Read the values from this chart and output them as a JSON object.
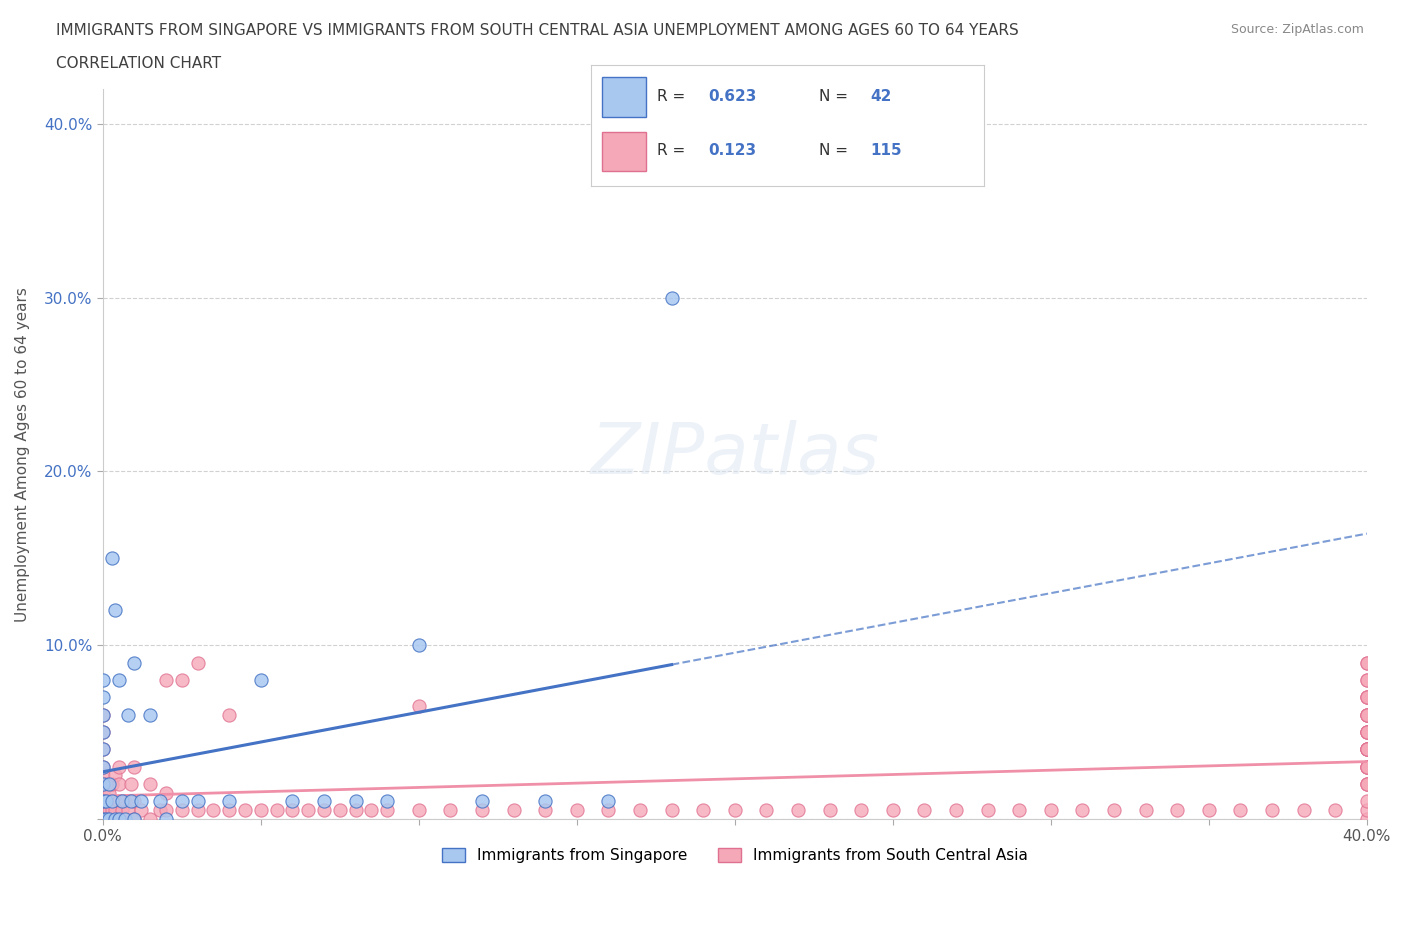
{
  "title_line1": "IMMIGRANTS FROM SINGAPORE VS IMMIGRANTS FROM SOUTH CENTRAL ASIA UNEMPLOYMENT AMONG AGES 60 TO 64 YEARS",
  "title_line2": "CORRELATION CHART",
  "source": "Source: ZipAtlas.com",
  "ylabel": "Unemployment Among Ages 60 to 64 years",
  "xlim": [
    0.0,
    0.4
  ],
  "ylim": [
    0.0,
    0.42
  ],
  "legend_r1": "0.623",
  "legend_n1": "42",
  "legend_r2": "0.123",
  "legend_n2": "115",
  "color_singapore": "#a8c8f0",
  "color_singapore_edge": "#4472c4",
  "color_sca": "#f5a8b8",
  "color_sca_edge": "#e07090",
  "color_sg_line": "#4472c4",
  "color_sca_line": "#f090a8",
  "watermark_color": "#d0d8e8",
  "sg_x": [
    0.0,
    0.0,
    0.0,
    0.0,
    0.0,
    0.0,
    0.0,
    0.0,
    0.0,
    0.001,
    0.001,
    0.002,
    0.002,
    0.003,
    0.003,
    0.004,
    0.004,
    0.005,
    0.005,
    0.006,
    0.007,
    0.008,
    0.009,
    0.01,
    0.01,
    0.012,
    0.015,
    0.018,
    0.02,
    0.025,
    0.03,
    0.04,
    0.05,
    0.06,
    0.07,
    0.08,
    0.09,
    0.1,
    0.12,
    0.14,
    0.16,
    0.18
  ],
  "sg_y": [
    0.0,
    0.01,
    0.02,
    0.03,
    0.04,
    0.05,
    0.06,
    0.07,
    0.08,
    0.0,
    0.01,
    0.0,
    0.02,
    0.01,
    0.15,
    0.0,
    0.12,
    0.0,
    0.08,
    0.01,
    0.0,
    0.06,
    0.01,
    0.0,
    0.09,
    0.01,
    0.06,
    0.01,
    0.0,
    0.01,
    0.01,
    0.01,
    0.08,
    0.01,
    0.01,
    0.01,
    0.01,
    0.1,
    0.01,
    0.01,
    0.01,
    0.3
  ],
  "sca_x": [
    0.0,
    0.0,
    0.0,
    0.0,
    0.0,
    0.0,
    0.0,
    0.0,
    0.0,
    0.0,
    0.001,
    0.001,
    0.001,
    0.002,
    0.002,
    0.003,
    0.003,
    0.004,
    0.004,
    0.005,
    0.005,
    0.005,
    0.005,
    0.006,
    0.007,
    0.008,
    0.009,
    0.01,
    0.01,
    0.01,
    0.012,
    0.015,
    0.015,
    0.018,
    0.02,
    0.02,
    0.02,
    0.025,
    0.025,
    0.03,
    0.03,
    0.035,
    0.04,
    0.04,
    0.045,
    0.05,
    0.055,
    0.06,
    0.065,
    0.07,
    0.075,
    0.08,
    0.085,
    0.09,
    0.1,
    0.1,
    0.11,
    0.12,
    0.13,
    0.14,
    0.15,
    0.16,
    0.17,
    0.18,
    0.19,
    0.2,
    0.21,
    0.22,
    0.23,
    0.24,
    0.25,
    0.26,
    0.27,
    0.28,
    0.29,
    0.3,
    0.31,
    0.32,
    0.33,
    0.34,
    0.35,
    0.36,
    0.37,
    0.38,
    0.39,
    0.4,
    0.4,
    0.4,
    0.4,
    0.4,
    0.4,
    0.4,
    0.4,
    0.4,
    0.4,
    0.4,
    0.4,
    0.4,
    0.4,
    0.4,
    0.4,
    0.4,
    0.4,
    0.4,
    0.4,
    0.4,
    0.4,
    0.4,
    0.4,
    0.4,
    0.4,
    0.4,
    0.4,
    0.4,
    0.4
  ],
  "sca_y": [
    0.0,
    0.005,
    0.01,
    0.015,
    0.02,
    0.025,
    0.03,
    0.04,
    0.05,
    0.06,
    0.0,
    0.01,
    0.02,
    0.005,
    0.015,
    0.005,
    0.02,
    0.005,
    0.025,
    0.0,
    0.01,
    0.02,
    0.03,
    0.005,
    0.01,
    0.005,
    0.02,
    0.0,
    0.01,
    0.03,
    0.005,
    0.0,
    0.02,
    0.005,
    0.005,
    0.015,
    0.08,
    0.005,
    0.08,
    0.005,
    0.09,
    0.005,
    0.005,
    0.06,
    0.005,
    0.005,
    0.005,
    0.005,
    0.005,
    0.005,
    0.005,
    0.005,
    0.005,
    0.005,
    0.005,
    0.065,
    0.005,
    0.005,
    0.005,
    0.005,
    0.005,
    0.005,
    0.005,
    0.005,
    0.005,
    0.005,
    0.005,
    0.005,
    0.005,
    0.005,
    0.005,
    0.005,
    0.005,
    0.005,
    0.005,
    0.005,
    0.005,
    0.005,
    0.005,
    0.005,
    0.005,
    0.005,
    0.005,
    0.005,
    0.005,
    0.0,
    0.005,
    0.01,
    0.02,
    0.03,
    0.04,
    0.05,
    0.06,
    0.07,
    0.08,
    0.09,
    0.02,
    0.03,
    0.04,
    0.05,
    0.06,
    0.07,
    0.08,
    0.09,
    0.02,
    0.03,
    0.04,
    0.05,
    0.06,
    0.07,
    0.04,
    0.05,
    0.06,
    0.03,
    0.04,
    0.005
  ]
}
